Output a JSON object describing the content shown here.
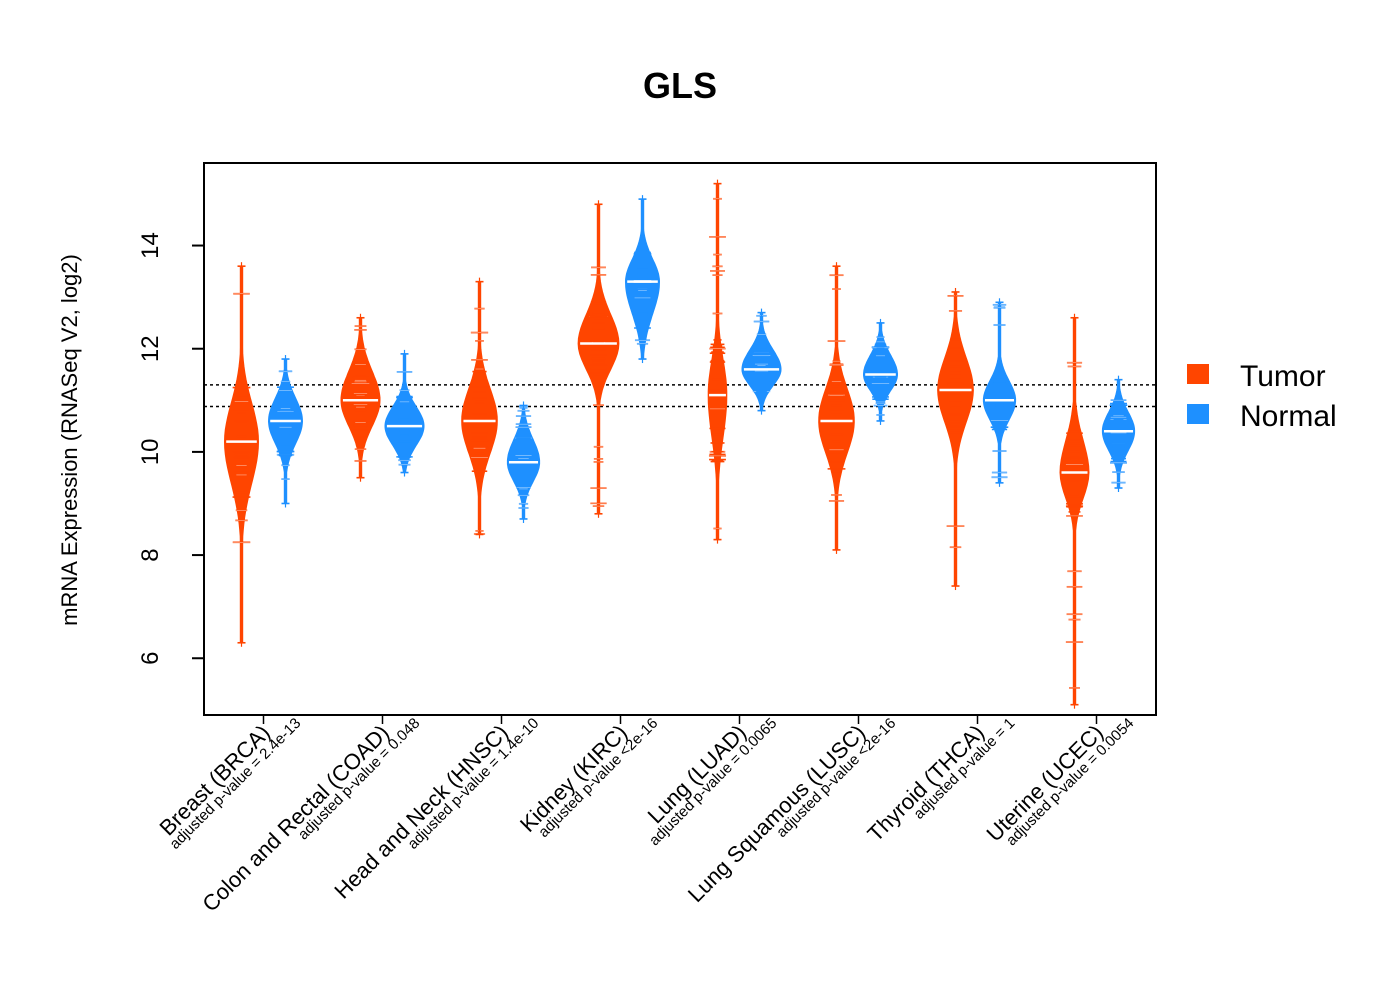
{
  "chart_data": {
    "type": "violin",
    "title": "GLS",
    "xlabel": "",
    "ylabel": "mRNA Expression (RNASeq V2, log2)",
    "ylim": [
      4.9,
      15.6
    ],
    "yticks": [
      "6",
      "8",
      "10",
      "12",
      "14"
    ],
    "reference_lines": [
      10.88,
      11.3
    ],
    "legend": {
      "placement": "right",
      "entries": [
        {
          "label": "Tumor",
          "color": "#ff4500"
        },
        {
          "label": "Normal",
          "color": "#1e90ff"
        }
      ]
    },
    "categories": [
      {
        "label": "Breast (BRCA)",
        "pvalue": "adjusted p-value = 2.4e-13",
        "tumor": {
          "min": 6.3,
          "max": 13.6,
          "median": 10.2,
          "core_low": 8.9,
          "core_high": 11.4,
          "width": 1.0
        },
        "normal": {
          "min": 9.0,
          "max": 11.8,
          "median": 10.6,
          "core_low": 9.9,
          "core_high": 11.3,
          "width": 1.0
        }
      },
      {
        "label": "Colon and Rectal (COAD)",
        "pvalue": "adjusted p-value = 0.048",
        "tumor": {
          "min": 9.5,
          "max": 12.6,
          "median": 11.0,
          "core_low": 10.2,
          "core_high": 11.9,
          "width": 1.15
        },
        "normal": {
          "min": 9.6,
          "max": 11.9,
          "median": 10.5,
          "core_low": 9.9,
          "core_high": 11.1,
          "width": 1.15
        }
      },
      {
        "label": "Head and Neck (HNSC)",
        "pvalue": "adjusted p-value = 1.4e-10",
        "tumor": {
          "min": 8.4,
          "max": 13.3,
          "median": 10.6,
          "core_low": 9.6,
          "core_high": 11.6,
          "width": 1.05
        },
        "normal": {
          "min": 8.7,
          "max": 10.9,
          "median": 9.8,
          "core_low": 9.2,
          "core_high": 10.5,
          "width": 0.95
        }
      },
      {
        "label": "Kidney (KIRC)",
        "pvalue": "adjusted p-value <2e-16",
        "tumor": {
          "min": 8.8,
          "max": 14.8,
          "median": 12.1,
          "core_low": 11.3,
          "core_high": 13.0,
          "width": 1.2
        },
        "normal": {
          "min": 11.8,
          "max": 14.9,
          "median": 13.3,
          "core_low": 12.3,
          "core_high": 14.0,
          "width": 1.0
        }
      },
      {
        "label": "Lung (LUAD)",
        "pvalue": "adjusted p-value = 0.0065",
        "tumor": {
          "min": 8.3,
          "max": 15.2,
          "median": 11.1,
          "core_low": 9.8,
          "core_high": 12.2,
          "width": 0.55
        },
        "normal": {
          "min": 10.8,
          "max": 12.7,
          "median": 11.6,
          "core_low": 11.1,
          "core_high": 12.2,
          "width": 1.15
        }
      },
      {
        "label": "Lung Squamous (LUSC)",
        "pvalue": "adjusted p-value <2e-16",
        "tumor": {
          "min": 8.1,
          "max": 13.6,
          "median": 10.6,
          "core_low": 9.6,
          "core_high": 11.6,
          "width": 1.05
        },
        "normal": {
          "min": 10.6,
          "max": 12.5,
          "median": 11.5,
          "core_low": 11.0,
          "core_high": 12.1,
          "width": 1.0
        }
      },
      {
        "label": "Thyroid (THCA)",
        "pvalue": "adjusted p-value = 1",
        "tumor": {
          "min": 7.4,
          "max": 13.1,
          "median": 11.2,
          "core_low": 10.2,
          "core_high": 12.2,
          "width": 1.05
        },
        "normal": {
          "min": 9.4,
          "max": 12.9,
          "median": 11.0,
          "core_low": 10.4,
          "core_high": 11.6,
          "width": 0.95
        }
      },
      {
        "label": "Uterine (UCEC)",
        "pvalue": "adjusted p-value = 0.0054",
        "tumor": {
          "min": 5.1,
          "max": 12.6,
          "median": 9.6,
          "core_low": 8.8,
          "core_high": 10.6,
          "width": 0.85
        },
        "normal": {
          "min": 9.3,
          "max": 11.4,
          "median": 10.4,
          "core_low": 9.8,
          "core_high": 11.0,
          "width": 0.95
        }
      }
    ]
  }
}
